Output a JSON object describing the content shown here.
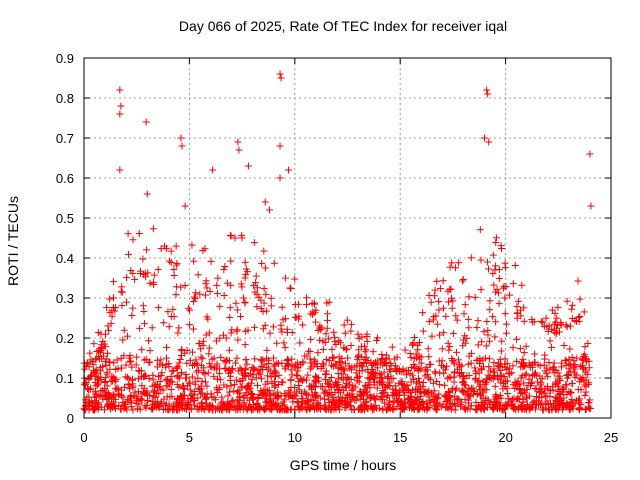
{
  "chart_data": {
    "type": "scatter",
    "title": "Day 066 of 2025, Rate Of TEC Index for receiver iqal",
    "xlabel": "GPS time / hours",
    "ylabel": "ROTI / TECUs",
    "xlim": [
      0,
      25
    ],
    "ylim": [
      0,
      0.9
    ],
    "xticks": [
      0,
      5,
      10,
      15,
      20,
      25
    ],
    "yticks": [
      0,
      0.1,
      0.2,
      0.3,
      0.4,
      0.5,
      0.6,
      0.7,
      0.8,
      0.9
    ],
    "grid": true,
    "marker": "+",
    "color": "#ff0000",
    "envelope": {
      "description": "approximate upper envelope of dense point cloud (hour, ROTI)",
      "hours": [
        0,
        1,
        2,
        3,
        4,
        5,
        6,
        7,
        8,
        9,
        10,
        11,
        12,
        13,
        14,
        15,
        16,
        17,
        18,
        19,
        20,
        21,
        22,
        23,
        24
      ],
      "typical_max": [
        0.14,
        0.25,
        0.45,
        0.48,
        0.42,
        0.42,
        0.4,
        0.45,
        0.42,
        0.42,
        0.35,
        0.33,
        0.26,
        0.22,
        0.2,
        0.18,
        0.26,
        0.38,
        0.38,
        0.5,
        0.42,
        0.3,
        0.3,
        0.3,
        0.38
      ]
    },
    "outliers": [
      {
        "x": 1.7,
        "y": 0.82
      },
      {
        "x": 1.75,
        "y": 0.78
      },
      {
        "x": 1.7,
        "y": 0.76
      },
      {
        "x": 2.95,
        "y": 0.74
      },
      {
        "x": 4.6,
        "y": 0.7
      },
      {
        "x": 4.65,
        "y": 0.68
      },
      {
        "x": 7.3,
        "y": 0.69
      },
      {
        "x": 7.35,
        "y": 0.67
      },
      {
        "x": 7.8,
        "y": 0.63
      },
      {
        "x": 6.1,
        "y": 0.62
      },
      {
        "x": 9.3,
        "y": 0.86
      },
      {
        "x": 9.35,
        "y": 0.85
      },
      {
        "x": 9.3,
        "y": 0.68
      },
      {
        "x": 9.7,
        "y": 0.62
      },
      {
        "x": 9.3,
        "y": 0.6
      },
      {
        "x": 19.1,
        "y": 0.82
      },
      {
        "x": 19.15,
        "y": 0.81
      },
      {
        "x": 19.0,
        "y": 0.7
      },
      {
        "x": 19.2,
        "y": 0.69
      },
      {
        "x": 24.0,
        "y": 0.66
      },
      {
        "x": 24.05,
        "y": 0.53
      },
      {
        "x": 1.7,
        "y": 0.62
      },
      {
        "x": 3.0,
        "y": 0.56
      },
      {
        "x": 4.8,
        "y": 0.53
      },
      {
        "x": 8.6,
        "y": 0.54
      },
      {
        "x": 8.8,
        "y": 0.52
      }
    ]
  }
}
